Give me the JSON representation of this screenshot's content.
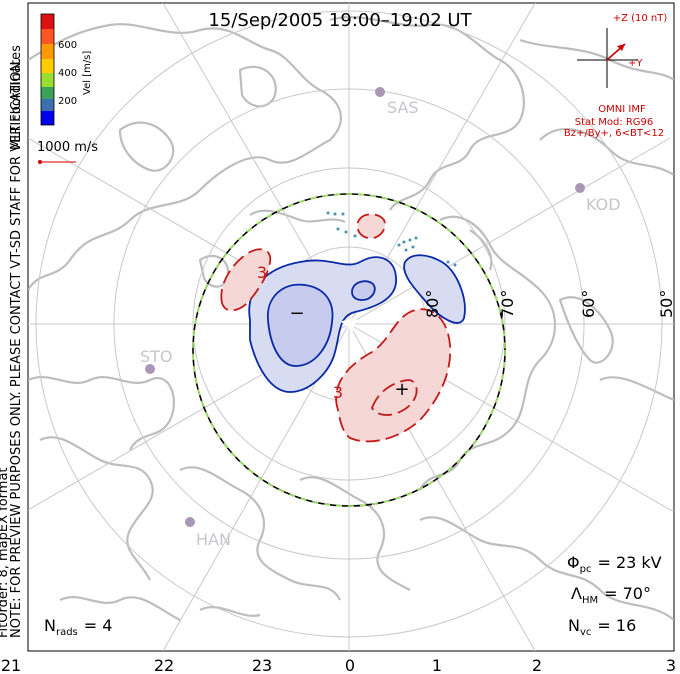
{
  "title": "15/Sep/2005 19:00–19:02 UT",
  "colorbar": {
    "label": "Vel [m/s]",
    "ticks": [
      "600",
      "400",
      "200"
    ],
    "colors": [
      "#0000ff",
      "#3366cc",
      "#3aa05a",
      "#88dd22",
      "#dddd00",
      "#ffaa00",
      "#ff4400",
      "#cc0000"
    ]
  },
  "velocity_reference": {
    "label": "1000 m/s",
    "color": "#cc0000"
  },
  "imf": {
    "z_label": "+Z (10 nT)",
    "y_label": "+Y",
    "source": "OMNI IMF",
    "model_line1": "Stat Mod: RG96",
    "model_line2": "Bz+/By+, 6<BT<12",
    "color": "#cc0000"
  },
  "side_text": {
    "coords": "MLT coordinates",
    "note": "NOTE: FOR PREVIEW PURPOSES ONLY. PLEASE CONTACT VT-SD STAFF FOR VERIFICATION.",
    "fit": "FitOrder: 8, mapEX format"
  },
  "stations": [
    "SAS",
    "KOD",
    "STO",
    "HAN"
  ],
  "latitude_labels": [
    "80°",
    "70°",
    "60°",
    "50°"
  ],
  "mlt_labels": [
    "21",
    "22",
    "23",
    "0",
    "1",
    "2",
    "3"
  ],
  "contour_labels": {
    "minus_sign": "−",
    "plus_sign": "+",
    "neg_value": "3",
    "pos_value": "3"
  },
  "stats": {
    "phi_symbol": "Φ",
    "phi_sub": "pc",
    "phi_value": "= 23 kV",
    "lambda_symbol": "Λ",
    "lambda_sub": "HM",
    "lambda_value": "= 70°",
    "nvc_symbol": "N",
    "nvc_sub": "vc",
    "nvc_value": "= 16",
    "nrads_symbol": "N",
    "nrads_sub": "rads",
    "nrads_value": "= 4"
  }
}
